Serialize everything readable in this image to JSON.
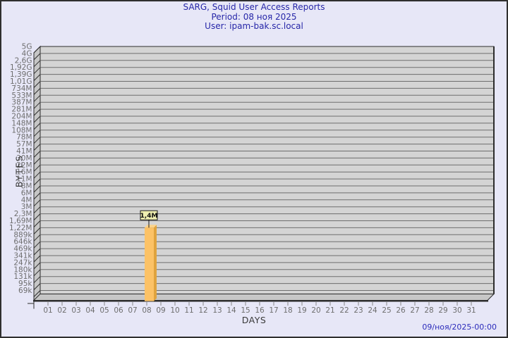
{
  "window": {
    "background": "#e7e7f7",
    "frame_color": "#2f2f2f"
  },
  "chart_data": {
    "type": "bar",
    "title": "SARG, Squid User Access Reports",
    "subtitle_lines": [
      "Period: 08 ноя 2025",
      "User: ipam-bak.sc.local"
    ],
    "xlabel": "DAYS",
    "ylabel": "BYTES",
    "y_scale": "logarithmic",
    "grid": "horizontal",
    "legend": "none",
    "timestamp": "09/ноя/2025-00:00",
    "x_tick_labels": [
      "01",
      "02",
      "03",
      "04",
      "05",
      "06",
      "07",
      "08",
      "09",
      "10",
      "11",
      "12",
      "13",
      "14",
      "15",
      "16",
      "17",
      "18",
      "19",
      "20",
      "21",
      "22",
      "23",
      "24",
      "25",
      "26",
      "27",
      "28",
      "29",
      "30",
      "31"
    ],
    "y_tick_labels": [
      "5G",
      "4G",
      "2,6G",
      "1,92G",
      "1,39G",
      "1,01G",
      "734M",
      "533M",
      "387M",
      "281M",
      "204M",
      "148M",
      "108M",
      "78M",
      "57M",
      "41M",
      "30M",
      "22M",
      "16M",
      "11M",
      "8M",
      "6M",
      "4M",
      "3M",
      "2,3M",
      "1,69M",
      "1,22M",
      "889k",
      "646k",
      "469k",
      "341k",
      "247k",
      "180k",
      "131k",
      "95k",
      "69k"
    ],
    "bars": [
      {
        "day": "08",
        "value_bytes": 1400000,
        "value_label": "1,4M"
      }
    ],
    "colors": {
      "title_color": "#2626a8",
      "timestamp_color": "#2b2bbb",
      "axis_title_color": "#3a3a3a",
      "tick_label_color": "#6e6e6e",
      "plot_bg": "#d4d4d4",
      "wall_fill": "#c6c6c6",
      "gridline": "#6e6e6e",
      "plot_border": "#2d2d2d",
      "bar_front": "#fcc266",
      "bar_side": "#dfa33e",
      "bar_top": "#fdd389",
      "value_box_bg": "#efefb0",
      "value_box_border": "#1a1a1a",
      "value_text": "#111111"
    }
  }
}
